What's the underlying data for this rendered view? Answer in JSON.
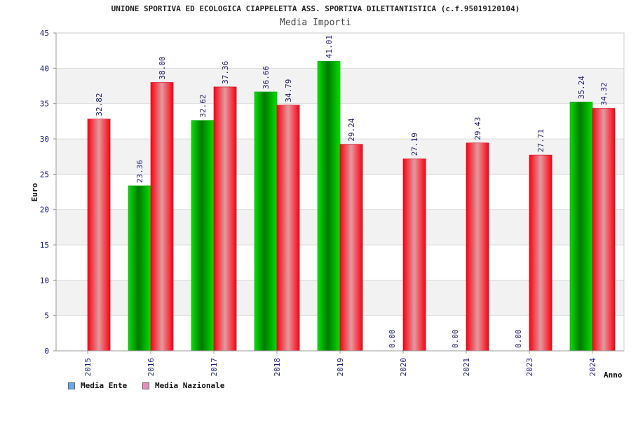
{
  "chart_data": {
    "type": "bar",
    "title": "UNIONE SPORTIVA ED ECOLOGICA CIAPPELETTA ASS. SPORTIVA DILETTANTISTICA (c.f.95019120104)",
    "subtitle": "Media Importi",
    "xlabel": "Anno",
    "ylabel": "Euro",
    "categories": [
      "2015",
      "2016",
      "2017",
      "2018",
      "2019",
      "2020",
      "2021",
      "2023",
      "2024"
    ],
    "ylim": [
      0,
      45
    ],
    "yticks": [
      0,
      5,
      10,
      15,
      20,
      25,
      30,
      35,
      40,
      45
    ],
    "grid": true,
    "legend_position": "bottom-left",
    "series": [
      {
        "name": "Media Ente",
        "values": [
          null,
          23.36,
          32.62,
          36.66,
          41.01,
          0.0,
          0.0,
          0.0,
          35.24
        ],
        "labels": [
          "",
          "23.36",
          "32.62",
          "36.66",
          "41.01",
          "0.00",
          "0.00",
          "0.00",
          "35.24"
        ],
        "color": "#00cc00",
        "legend_color": "#6aa8ee"
      },
      {
        "name": "Media Nazionale",
        "values": [
          32.82,
          38.0,
          37.36,
          34.79,
          29.24,
          27.19,
          29.43,
          27.71,
          34.32
        ],
        "labels": [
          "32.82",
          "38.00",
          "37.36",
          "34.79",
          "29.24",
          "27.19",
          "29.43",
          "27.71",
          "34.32"
        ],
        "color": "#ee1122",
        "legend_color": "#e58fb9"
      }
    ]
  }
}
